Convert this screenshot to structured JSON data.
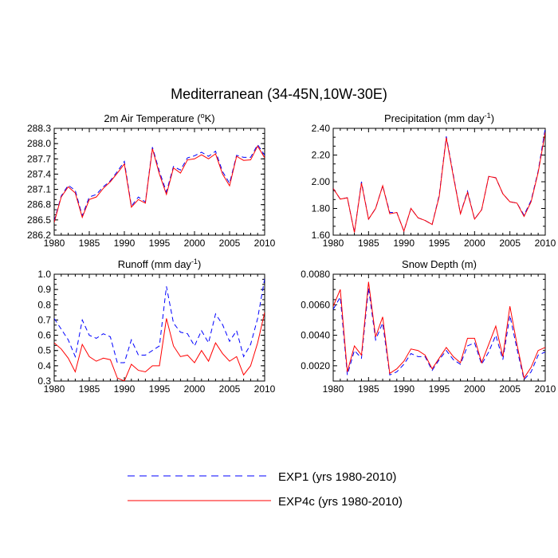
{
  "title": "Mediterranean (34-45N,10W-30E)",
  "colors": {
    "exp1": "#0000ff",
    "exp4c": "#ff0000",
    "axis": "#000000"
  },
  "legend": {
    "exp1_label": "EXP1 (yrs 1980-2010)",
    "exp4c_label": "EXP4c (yrs 1980-2010)"
  },
  "chart_data": [
    {
      "type": "line",
      "title": "2m Air Temperature (°K)",
      "title_main": "2m Air Temperature (",
      "title_sup": "o",
      "title_end": "K)",
      "x": [
        1980,
        1981,
        1982,
        1983,
        1984,
        1985,
        1986,
        1987,
        1988,
        1989,
        1990,
        1991,
        1992,
        1993,
        1994,
        1995,
        1996,
        1997,
        1998,
        1999,
        2000,
        2001,
        2002,
        2003,
        2004,
        2005,
        2006,
        2007,
        2008,
        2009,
        2010
      ],
      "xlim": [
        1980,
        2010
      ],
      "ylim": [
        286.2,
        288.3
      ],
      "xticks": [
        1980,
        1985,
        1990,
        1995,
        2000,
        2005,
        2010
      ],
      "yticks": [
        286.2,
        286.5,
        286.8,
        287.1,
        287.4,
        287.7,
        288.0,
        288.3
      ],
      "ytick_labels": [
        "286.2",
        "286.5",
        "286.8",
        "287.1",
        "287.4",
        "287.7",
        "288.0",
        "288.3"
      ],
      "series": [
        {
          "name": "EXP1 (yrs 1980-2010)",
          "style": "dashed",
          "color": "#0000ff",
          "values": [
            286.48,
            286.97,
            287.18,
            287.08,
            286.58,
            286.95,
            287.0,
            287.15,
            287.27,
            287.45,
            287.65,
            286.77,
            286.95,
            286.85,
            287.93,
            287.45,
            287.05,
            287.55,
            287.48,
            287.72,
            287.76,
            287.83,
            287.75,
            287.85,
            287.45,
            287.22,
            287.77,
            287.73,
            287.73,
            287.98,
            287.77
          ]
        },
        {
          "name": "EXP4c (yrs 1980-2010)",
          "style": "solid",
          "color": "#ff0000",
          "values": [
            286.45,
            286.95,
            287.15,
            287.03,
            286.55,
            286.9,
            286.95,
            287.12,
            287.25,
            287.42,
            287.6,
            286.75,
            286.9,
            286.83,
            287.9,
            287.4,
            287.0,
            287.52,
            287.42,
            287.68,
            287.7,
            287.78,
            287.7,
            287.8,
            287.4,
            287.17,
            287.75,
            287.67,
            287.68,
            287.95,
            287.72
          ]
        }
      ]
    },
    {
      "type": "line",
      "title": "Precipitation (mm day-1)",
      "title_main": "Precipitation (mm day",
      "title_sup": "-1",
      "title_end": ")",
      "x": [
        1980,
        1981,
        1982,
        1983,
        1984,
        1985,
        1986,
        1987,
        1988,
        1989,
        1990,
        1991,
        1992,
        1993,
        1994,
        1995,
        1996,
        1997,
        1998,
        1999,
        2000,
        2001,
        2002,
        2003,
        2004,
        2005,
        2006,
        2007,
        2008,
        2009,
        2010
      ],
      "xlim": [
        1980,
        2010
      ],
      "ylim": [
        1.6,
        2.4
      ],
      "xticks": [
        1980,
        1985,
        1990,
        1995,
        2000,
        2005,
        2010
      ],
      "yticks": [
        1.6,
        1.8,
        2.0,
        2.2,
        2.4
      ],
      "ytick_labels": [
        "1.60",
        "1.80",
        "2.00",
        "2.20",
        "2.40"
      ],
      "series": [
        {
          "name": "EXP1 (yrs 1980-2010)",
          "style": "dashed",
          "color": "#0000ff",
          "values": [
            1.95,
            1.87,
            1.88,
            1.62,
            2.0,
            1.72,
            1.8,
            1.97,
            1.77,
            1.77,
            1.63,
            1.8,
            1.73,
            1.71,
            1.68,
            1.9,
            2.34,
            2.05,
            1.76,
            1.93,
            1.72,
            1.79,
            2.04,
            2.03,
            1.91,
            1.85,
            1.84,
            1.75,
            1.86,
            2.08,
            2.4
          ]
        },
        {
          "name": "EXP4c (yrs 1980-2010)",
          "style": "solid",
          "color": "#ff0000",
          "values": [
            1.95,
            1.87,
            1.88,
            1.62,
            1.99,
            1.72,
            1.8,
            1.97,
            1.76,
            1.77,
            1.63,
            1.8,
            1.73,
            1.71,
            1.68,
            1.89,
            2.33,
            2.04,
            1.76,
            1.92,
            1.72,
            1.79,
            2.04,
            2.03,
            1.91,
            1.85,
            1.84,
            1.74,
            1.85,
            2.07,
            2.37
          ]
        }
      ]
    },
    {
      "type": "line",
      "title": "Runoff (mm day-1)",
      "title_main": "Runoff (mm day",
      "title_sup": "-1",
      "title_end": ")",
      "x": [
        1980,
        1981,
        1982,
        1983,
        1984,
        1985,
        1986,
        1987,
        1988,
        1989,
        1990,
        1991,
        1992,
        1993,
        1994,
        1995,
        1996,
        1997,
        1998,
        1999,
        2000,
        2001,
        2002,
        2003,
        2004,
        2005,
        2006,
        2007,
        2008,
        2009,
        2010
      ],
      "xlim": [
        1980,
        2010
      ],
      "ylim": [
        0.3,
        1.0
      ],
      "xticks": [
        1980,
        1985,
        1990,
        1995,
        2000,
        2005,
        2010
      ],
      "yticks": [
        0.3,
        0.4,
        0.5,
        0.6,
        0.7,
        0.8,
        0.9,
        1.0
      ],
      "ytick_labels": [
        "0.3",
        "0.4",
        "0.5",
        "0.6",
        "0.7",
        "0.8",
        "0.9",
        "1.0"
      ],
      "series": [
        {
          "name": "EXP1 (yrs 1980-2010)",
          "style": "dashed",
          "color": "#0000ff",
          "values": [
            0.71,
            0.64,
            0.57,
            0.46,
            0.7,
            0.6,
            0.58,
            0.61,
            0.59,
            0.42,
            0.42,
            0.57,
            0.47,
            0.47,
            0.5,
            0.53,
            0.92,
            0.68,
            0.62,
            0.61,
            0.53,
            0.63,
            0.55,
            0.74,
            0.67,
            0.56,
            0.63,
            0.46,
            0.54,
            0.71,
            0.97
          ]
        },
        {
          "name": "EXP4c (yrs 1980-2010)",
          "style": "solid",
          "color": "#ff0000",
          "values": [
            0.55,
            0.51,
            0.45,
            0.36,
            0.54,
            0.46,
            0.43,
            0.45,
            0.44,
            0.32,
            0.3,
            0.41,
            0.37,
            0.36,
            0.4,
            0.4,
            0.71,
            0.53,
            0.46,
            0.47,
            0.42,
            0.5,
            0.43,
            0.55,
            0.48,
            0.43,
            0.46,
            0.34,
            0.4,
            0.55,
            0.75
          ]
        }
      ]
    },
    {
      "type": "line",
      "title": "Snow Depth (m)",
      "title_main": "Snow Depth (m)",
      "title_sup": "",
      "title_end": "",
      "x": [
        1980,
        1981,
        1982,
        1983,
        1984,
        1985,
        1986,
        1987,
        1988,
        1989,
        1990,
        1991,
        1992,
        1993,
        1994,
        1995,
        1996,
        1997,
        1998,
        1999,
        2000,
        2001,
        2002,
        2003,
        2004,
        2005,
        2006,
        2007,
        2008,
        2009,
        2010
      ],
      "xlim": [
        1980,
        2010
      ],
      "ylim": [
        0.001,
        0.008
      ],
      "xticks": [
        1980,
        1985,
        1990,
        1995,
        2000,
        2005,
        2010
      ],
      "yticks": [
        0.002,
        0.004,
        0.006,
        0.008
      ],
      "ytick_labels": [
        "0.0020",
        "0.0040",
        "0.0060",
        "0.0080"
      ],
      "series": [
        {
          "name": "EXP1 (yrs 1980-2010)",
          "style": "dashed",
          "color": "#0000ff",
          "values": [
            0.0057,
            0.0065,
            0.0014,
            0.003,
            0.0025,
            0.0071,
            0.0037,
            0.0048,
            0.0014,
            0.0016,
            0.0021,
            0.0028,
            0.0026,
            0.0026,
            0.0017,
            0.0024,
            0.003,
            0.0024,
            0.0021,
            0.0033,
            0.0035,
            0.0021,
            0.0029,
            0.004,
            0.0024,
            0.0053,
            0.0031,
            0.0011,
            0.0016,
            0.0027,
            0.0029
          ]
        },
        {
          "name": "EXP4c (yrs 1980-2010)",
          "style": "solid",
          "color": "#ff0000",
          "values": [
            0.0059,
            0.007,
            0.0016,
            0.0033,
            0.0027,
            0.0075,
            0.0039,
            0.0052,
            0.0015,
            0.0018,
            0.0023,
            0.0031,
            0.003,
            0.0027,
            0.0018,
            0.0025,
            0.0032,
            0.0026,
            0.0022,
            0.0038,
            0.0038,
            0.0022,
            0.0034,
            0.0046,
            0.0026,
            0.0059,
            0.0034,
            0.0012,
            0.0019,
            0.003,
            0.0032
          ]
        }
      ]
    }
  ]
}
